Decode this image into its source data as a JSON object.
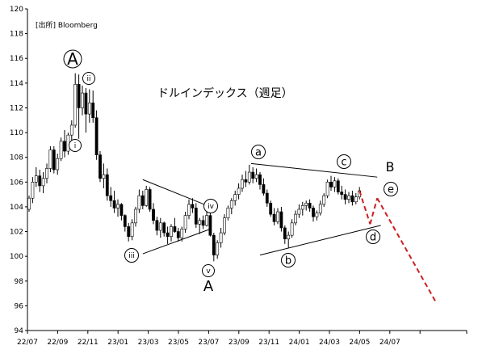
{
  "chart_data": {
    "type": "candlestick",
    "title": "ドルインデックス（週足）",
    "source": "[出所]  Bloomberg",
    "xlabel": "",
    "ylabel": "",
    "ylim": [
      94,
      120
    ],
    "y_ticks": [
      94,
      96,
      98,
      100,
      102,
      104,
      106,
      108,
      110,
      112,
      114,
      116,
      118,
      120
    ],
    "x_ticks": [
      "22/07",
      "22/09",
      "22/11",
      "23/01",
      "23/03",
      "23/05",
      "23/07",
      "23/09",
      "23/11",
      "24/01",
      "24/03",
      "24/05",
      "24/07"
    ],
    "grid": false,
    "up_color": "#ffffff",
    "down_color": "#000000",
    "projection_color": "#cc1f1f",
    "candles": [
      [
        103.8,
        104.9,
        103.6,
        104.7
      ],
      [
        104.7,
        106.4,
        104.3,
        106.0
      ],
      [
        106.0,
        107.2,
        105.6,
        106.5
      ],
      [
        106.5,
        107.0,
        105.2,
        105.7
      ],
      [
        105.7,
        106.8,
        105.1,
        106.3
      ],
      [
        106.3,
        107.5,
        105.9,
        107.1
      ],
      [
        107.1,
        108.9,
        106.8,
        108.6
      ],
      [
        108.6,
        108.9,
        106.7,
        107.0
      ],
      [
        107.0,
        108.3,
        106.6,
        107.9
      ],
      [
        107.9,
        109.6,
        107.7,
        109.3
      ],
      [
        109.3,
        110.2,
        108.0,
        108.5
      ],
      [
        108.5,
        110.0,
        108.2,
        109.8
      ],
      [
        109.8,
        111.0,
        109.1,
        110.6
      ],
      [
        110.6,
        114.8,
        110.4,
        113.9
      ],
      [
        113.9,
        114.7,
        109.5,
        112.0
      ],
      [
        112.0,
        113.8,
        111.4,
        113.2
      ],
      [
        113.2,
        113.6,
        110.0,
        111.5
      ],
      [
        111.5,
        113.5,
        110.8,
        112.4
      ],
      [
        112.4,
        113.4,
        110.8,
        111.2
      ],
      [
        111.2,
        111.8,
        107.8,
        108.2
      ],
      [
        108.2,
        108.5,
        106.0,
        106.3
      ],
      [
        106.3,
        107.5,
        105.5,
        106.6
      ],
      [
        106.6,
        107.1,
        104.5,
        104.9
      ],
      [
        104.9,
        105.6,
        104.0,
        104.5
      ],
      [
        104.5,
        105.3,
        103.5,
        103.9
      ],
      [
        103.9,
        104.6,
        103.2,
        104.2
      ],
      [
        104.2,
        104.3,
        102.9,
        103.3
      ],
      [
        103.3,
        103.4,
        102.0,
        102.4
      ],
      [
        102.4,
        102.7,
        101.2,
        101.6
      ],
      [
        101.6,
        103.0,
        101.3,
        102.7
      ],
      [
        102.7,
        104.0,
        102.4,
        103.8
      ],
      [
        103.8,
        105.4,
        103.5,
        104.9
      ],
      [
        104.9,
        105.3,
        103.8,
        104.1
      ],
      [
        104.1,
        105.7,
        104.0,
        105.4
      ],
      [
        105.4,
        105.6,
        103.6,
        103.8
      ],
      [
        103.8,
        104.3,
        102.6,
        102.9
      ],
      [
        102.9,
        103.2,
        101.7,
        102.1
      ],
      [
        102.1,
        103.1,
        101.5,
        102.7
      ],
      [
        102.7,
        102.8,
        101.6,
        101.9
      ],
      [
        101.9,
        102.4,
        101.0,
        101.6
      ],
      [
        101.6,
        102.6,
        101.2,
        102.4
      ],
      [
        102.4,
        103.1,
        101.9,
        102.0
      ],
      [
        102.0,
        102.3,
        101.2,
        101.5
      ],
      [
        101.5,
        102.4,
        101.2,
        102.2
      ],
      [
        102.2,
        103.6,
        101.9,
        103.3
      ],
      [
        103.3,
        104.6,
        103.0,
        104.2
      ],
      [
        104.2,
        104.7,
        103.5,
        103.9
      ],
      [
        103.9,
        104.3,
        102.3,
        102.6
      ],
      [
        102.6,
        103.1,
        101.8,
        102.9
      ],
      [
        102.9,
        103.3,
        102.2,
        102.5
      ],
      [
        102.5,
        103.8,
        102.4,
        103.3
      ],
      [
        103.3,
        103.6,
        101.6,
        101.7
      ],
      [
        101.7,
        101.9,
        99.6,
        100.1
      ],
      [
        100.1,
        101.3,
        99.8,
        101.1
      ],
      [
        101.1,
        102.3,
        100.7,
        101.9
      ],
      [
        101.9,
        103.4,
        101.7,
        103.1
      ],
      [
        103.1,
        104.1,
        102.9,
        103.9
      ],
      [
        103.9,
        104.7,
        103.4,
        104.5
      ],
      [
        104.5,
        105.3,
        104.1,
        105.0
      ],
      [
        105.0,
        105.9,
        104.6,
        105.5
      ],
      [
        105.5,
        106.6,
        105.2,
        106.2
      ],
      [
        106.2,
        106.9,
        105.6,
        106.0
      ],
      [
        106.0,
        107.4,
        105.8,
        106.8
      ],
      [
        106.8,
        107.2,
        105.9,
        106.3
      ],
      [
        106.3,
        107.1,
        106.0,
        106.6
      ],
      [
        106.6,
        106.8,
        105.4,
        105.8
      ],
      [
        105.8,
        106.3,
        104.9,
        105.1
      ],
      [
        105.1,
        105.4,
        104.0,
        104.3
      ],
      [
        104.3,
        104.5,
        103.2,
        103.4
      ],
      [
        103.4,
        103.9,
        102.5,
        102.8
      ],
      [
        102.8,
        103.9,
        102.6,
        103.6
      ],
      [
        103.6,
        104.0,
        102.0,
        102.3
      ],
      [
        102.3,
        102.5,
        101.0,
        101.4
      ],
      [
        101.4,
        102.0,
        100.7,
        101.7
      ],
      [
        101.7,
        103.0,
        101.5,
        102.7
      ],
      [
        102.7,
        103.7,
        102.5,
        103.4
      ],
      [
        103.4,
        104.2,
        103.1,
        103.8
      ],
      [
        103.8,
        104.4,
        103.3,
        104.1
      ],
      [
        104.1,
        104.5,
        103.7,
        104.3
      ],
      [
        104.3,
        104.6,
        103.6,
        103.9
      ],
      [
        103.9,
        104.1,
        102.8,
        103.2
      ],
      [
        103.2,
        103.7,
        102.9,
        103.5
      ],
      [
        103.5,
        104.5,
        103.3,
        104.2
      ],
      [
        104.2,
        105.1,
        104.0,
        104.9
      ],
      [
        104.9,
        106.2,
        104.7,
        106.0
      ],
      [
        106.0,
        106.5,
        105.3,
        105.6
      ],
      [
        105.6,
        106.4,
        105.2,
        106.1
      ],
      [
        106.1,
        106.3,
        105.0,
        105.2
      ],
      [
        105.2,
        105.7,
        104.6,
        105.0
      ],
      [
        105.0,
        105.4,
        104.2,
        104.6
      ],
      [
        104.6,
        105.2,
        104.3,
        104.9
      ],
      [
        104.9,
        105.3,
        104.1,
        104.4
      ],
      [
        104.4,
        105.1,
        104.2,
        104.8
      ],
      [
        104.8,
        105.6,
        104.6,
        105.3
      ]
    ],
    "projection": [
      [
        105.3,
        102.6
      ],
      [
        102.6,
        104.7
      ],
      [
        104.7,
        96.3
      ]
    ],
    "trendlines": [
      {
        "from": [
          106.2
        ],
        "to": [
          104.0
        ]
      },
      {
        "from": [
          100.2
        ],
        "to": [
          102.2
        ]
      },
      {
        "from": [
          107.5
        ],
        "to": [
          106.4
        ]
      },
      {
        "from": [
          100.1
        ],
        "to": [
          102.5
        ]
      }
    ],
    "wave_labels": {
      "big_A_top": "A",
      "i": "i",
      "ii": "ii",
      "iii": "iii",
      "iv": "iv",
      "v": "v",
      "A_bottom": "A",
      "a": "a",
      "b": "b",
      "c": "c",
      "d": "d",
      "e": "e",
      "B": "B"
    }
  }
}
